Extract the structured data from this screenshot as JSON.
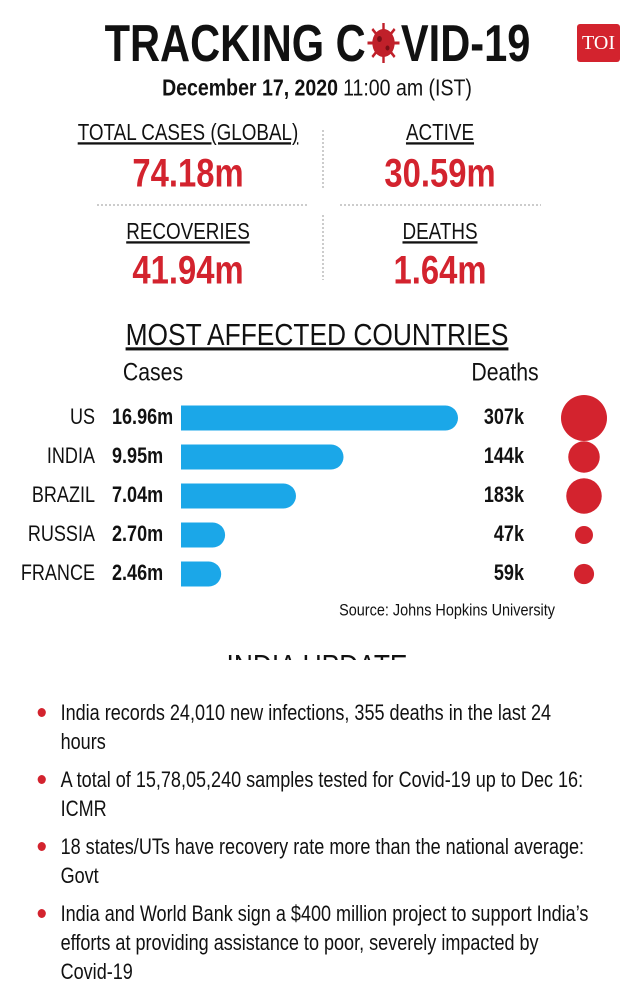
{
  "header": {
    "title_left": "TRACKING C",
    "title_right": "VID-19",
    "logo": "TOI",
    "date": "December 17, 2020",
    "time": "11:00 am (IST)"
  },
  "stats": [
    {
      "label": "TOTAL CASES (GLOBAL)",
      "value": "74.18m"
    },
    {
      "label": "ACTIVE",
      "value": "30.59m"
    },
    {
      "label": "RECOVERIES",
      "value": "41.94m"
    },
    {
      "label": "DEATHS",
      "value": "1.64m"
    }
  ],
  "chart_data": {
    "type": "bar",
    "title": "MOST AFFECTED COUNTRIES",
    "categories": [
      "US",
      "INDIA",
      "BRAZIL",
      "RUSSIA",
      "FRANCE"
    ],
    "series": [
      {
        "name": "Cases",
        "color": "#1ba7e8",
        "values": [
          16.96,
          9.95,
          7.04,
          2.7,
          2.46
        ],
        "value_labels": [
          "16.96m",
          "9.95m",
          "7.04m",
          "2.70m",
          "2.46m"
        ]
      },
      {
        "name": "Deaths",
        "color": "#d3232e",
        "values": [
          307,
          144,
          183,
          47,
          59
        ],
        "value_labels": [
          "307k",
          "144k",
          "183k",
          "47k",
          "59k"
        ]
      }
    ],
    "source": "Source: Johns Hopkins University"
  },
  "india_update": {
    "title": "INDIA UPDATE",
    "items": [
      "India records 24,010 new infections, 355 deaths in the last 24 hours",
      "A total of 15,78,05,240 samples tested for Covid-19 up to Dec 16: ICMR",
      "18 states/UTs have recovery rate more than the national average: Govt",
      "India and World Bank sign a $400 million project to support India’s efforts at providing assistance to poor, severely impacted by Covid-19"
    ]
  }
}
